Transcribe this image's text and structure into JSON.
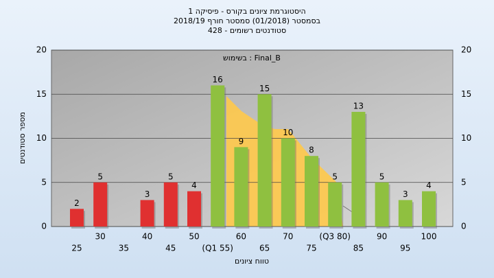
{
  "chart_data": {
    "type": "bar",
    "title": "היסטוגרמת ציונים בקורס - פיסיקה 1",
    "subtitle": "בסמסטר (01/2018) סמסטר חורף 2018/19",
    "subtitle2": "סטודנטים רשומים - 428",
    "annotation": "Final_B : בשימוש",
    "y_label": "מספר סטודנטים",
    "x_label": "טווח ציונים",
    "categories": [
      "25",
      "30",
      "35",
      "40",
      "45",
      "50",
      "(Q1 55)",
      "60",
      "65",
      "70",
      "75",
      "(Q3 80)",
      "85",
      "90",
      "95",
      "100"
    ],
    "values": [
      2,
      5,
      0,
      3,
      5,
      4,
      16,
      9,
      15,
      10,
      8,
      5,
      13,
      5,
      3,
      4
    ],
    "colors": [
      "#e03030",
      "#e03030",
      "#e03030",
      "#e03030",
      "#e03030",
      "#e03030",
      "#8fc040",
      "#8fc040",
      "#8fc040",
      "#8fc040",
      "#8fc040",
      "#8fc040",
      "#8fc040",
      "#8fc040",
      "#8fc040",
      "#8fc040"
    ],
    "ylim": [
      0,
      20
    ],
    "yticks": [
      0,
      5,
      10,
      15,
      20
    ],
    "grid": true
  }
}
